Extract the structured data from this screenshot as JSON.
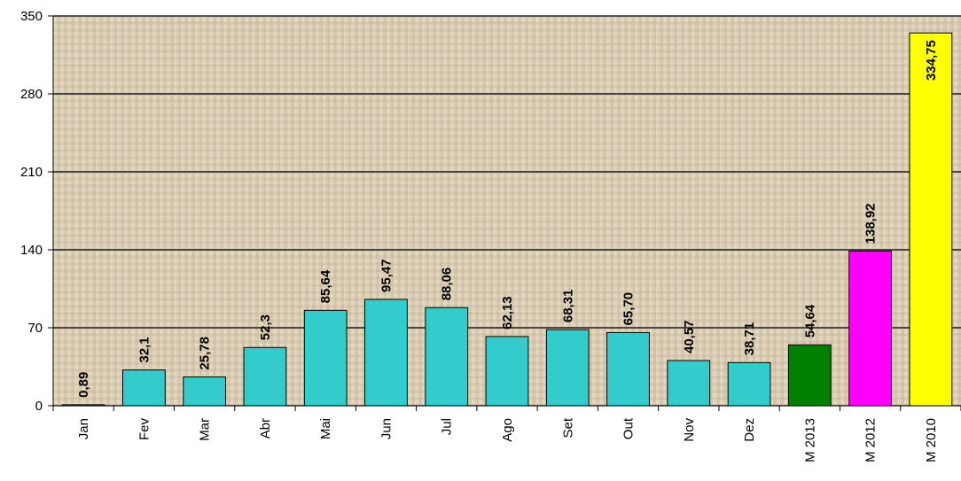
{
  "chart_data": {
    "type": "bar",
    "categories": [
      "Jan",
      "Fev",
      "Mar",
      "Abr",
      "Mai",
      "Jun",
      "Jul",
      "Ago",
      "Set",
      "Out",
      "Nov",
      "Dez",
      "M 2013",
      "M 2012",
      "M 2010"
    ],
    "values": [
      0.89,
      32.1,
      25.78,
      52.3,
      85.64,
      95.47,
      88.06,
      62.13,
      68.31,
      65.7,
      40.57,
      38.71,
      54.64,
      138.92,
      334.75
    ],
    "value_labels": [
      "0,89",
      "32,1",
      "25,78",
      "52,3",
      "85,64",
      "95,47",
      "88,06",
      "62,13",
      "68,31",
      "65,70",
      "40,57",
      "38,71",
      "54,64",
      "138,92",
      "334,75"
    ],
    "colors": [
      "#33cccc",
      "#33cccc",
      "#33cccc",
      "#33cccc",
      "#33cccc",
      "#33cccc",
      "#33cccc",
      "#33cccc",
      "#33cccc",
      "#33cccc",
      "#33cccc",
      "#33cccc",
      "#008000",
      "#ff00ff",
      "#ffff00"
    ],
    "ylim": [
      0,
      350
    ],
    "yticks": [
      0,
      70,
      140,
      210,
      280,
      350
    ],
    "grid": true
  }
}
